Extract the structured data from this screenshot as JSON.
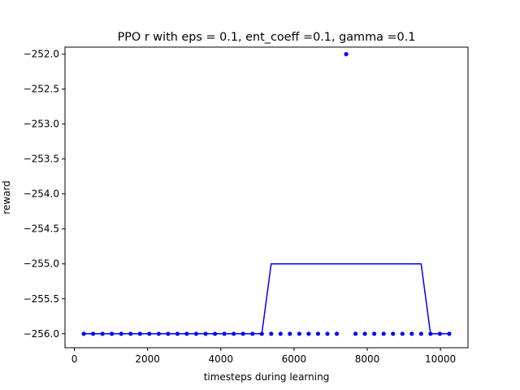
{
  "chart_data": {
    "type": "line",
    "title": "PPO r with eps = 0.1, ent_coeff =0.1, gamma =0.1",
    "xlabel": "timesteps during learning",
    "ylabel": "reward",
    "xlim": [
      -256,
      10752
    ],
    "ylim": [
      -256.2,
      -251.9
    ],
    "xticks": [
      0,
      2000,
      4000,
      6000,
      8000,
      10000
    ],
    "xtick_labels": [
      "0",
      "2000",
      "4000",
      "6000",
      "8000",
      "10000"
    ],
    "yticks": [
      -256.0,
      -255.5,
      -255.0,
      -254.5,
      -254.0,
      -253.5,
      -253.0,
      -252.5,
      -252.0
    ],
    "ytick_labels": [
      "−256.0",
      "−255.5",
      "−255.0",
      "−254.5",
      "−254.0",
      "−253.5",
      "−253.0",
      "−252.5",
      "−252.0"
    ],
    "grid": false,
    "color": "#0000ff",
    "series": [
      {
        "style": "markers",
        "x": [
          256,
          512,
          768,
          1024,
          1280,
          1536,
          1792,
          2048,
          2304,
          2560,
          2816,
          3072,
          3328,
          3584,
          3840,
          4096,
          4352,
          4608,
          4864,
          5120,
          5376,
          5632,
          5888,
          6144,
          6400,
          6656,
          6912,
          7168,
          7424,
          7680,
          7936,
          8192,
          8448,
          8704,
          8960,
          9216,
          9472,
          9728,
          9984,
          10240
        ],
        "y": [
          -256,
          -256,
          -256,
          -256,
          -256,
          -256,
          -256,
          -256,
          -256,
          -256,
          -256,
          -256,
          -256,
          -256,
          -256,
          -256,
          -256,
          -256,
          -256,
          -256,
          -256,
          -256,
          -256,
          -256,
          -256,
          -256,
          -256,
          -256,
          -252,
          -256,
          -256,
          -256,
          -256,
          -256,
          -256,
          -256,
          -256,
          -256,
          -256,
          -256
        ]
      },
      {
        "style": "line",
        "x": [
          256,
          512,
          768,
          1024,
          1280,
          1536,
          1792,
          2048,
          2304,
          2560,
          2816,
          3072,
          3328,
          3584,
          3840,
          4096,
          4352,
          4608,
          4864,
          5120,
          5376,
          5632,
          5888,
          6144,
          6400,
          6656,
          6912,
          7168,
          7424,
          7680,
          7936,
          8192,
          8448,
          8704,
          8960,
          9216,
          9472,
          9728,
          9984,
          10240
        ],
        "y": [
          -256,
          -256,
          -256,
          -256,
          -256,
          -256,
          -256,
          -256,
          -256,
          -256,
          -256,
          -256,
          -256,
          -256,
          -256,
          -256,
          -256,
          -256,
          -256,
          -256,
          -255,
          -255,
          -255,
          -255,
          -255,
          -255,
          -255,
          -255,
          -255,
          -255,
          -255,
          -255,
          -255,
          -255,
          -255,
          -255,
          -255,
          -256,
          -256,
          -256
        ]
      }
    ]
  }
}
